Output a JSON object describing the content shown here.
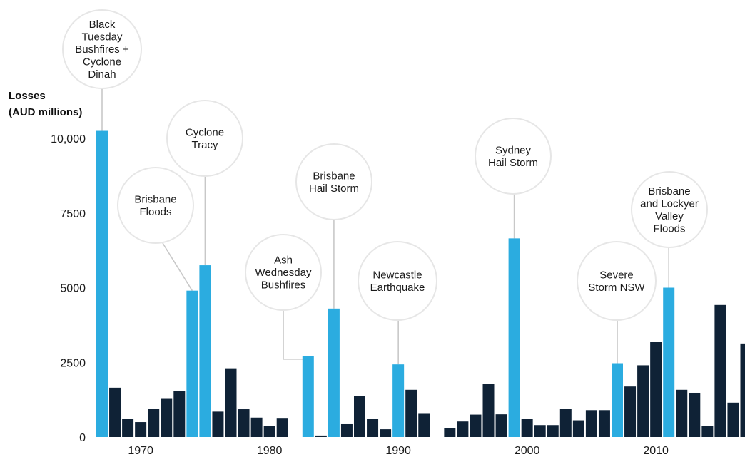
{
  "chart_data": {
    "type": "bar",
    "ylabel": [
      "Losses",
      "(AUD millions)"
    ],
    "ylim": [
      0,
      10000
    ],
    "yticks": [
      {
        "value": 0,
        "label": "0"
      },
      {
        "value": 2500,
        "label": "2500"
      },
      {
        "value": 5000,
        "label": "5000"
      },
      {
        "value": 7500,
        "label": "7500"
      },
      {
        "value": 10000,
        "label": "10,000"
      }
    ],
    "xticks": [
      {
        "year": 1970,
        "label": "1970"
      },
      {
        "year": 1980,
        "label": "1980"
      },
      {
        "year": 1990,
        "label": "1990"
      },
      {
        "year": 2000,
        "label": "2000"
      },
      {
        "year": 2010,
        "label": "2010"
      }
    ],
    "grid": false,
    "colors": {
      "highlight": "#2bace0",
      "regular": "#0f2236",
      "leader": "#c8c8c8",
      "circle_border": "#e6e6e6"
    },
    "bars": [
      {
        "year": 1967,
        "value": 10250,
        "highlight": true
      },
      {
        "year": 1968,
        "value": 1650,
        "highlight": false
      },
      {
        "year": 1969,
        "value": 600,
        "highlight": false
      },
      {
        "year": 1970,
        "value": 500,
        "highlight": false
      },
      {
        "year": 1971,
        "value": 950,
        "highlight": false
      },
      {
        "year": 1972,
        "value": 1300,
        "highlight": false
      },
      {
        "year": 1973,
        "value": 1550,
        "highlight": false
      },
      {
        "year": 1974,
        "value": 4900,
        "highlight": true
      },
      {
        "year": 1975,
        "value": 5750,
        "highlight": true
      },
      {
        "year": 1976,
        "value": 850,
        "highlight": false
      },
      {
        "year": 1977,
        "value": 2300,
        "highlight": false
      },
      {
        "year": 1978,
        "value": 930,
        "highlight": false
      },
      {
        "year": 1979,
        "value": 650,
        "highlight": false
      },
      {
        "year": 1980,
        "value": 370,
        "highlight": false
      },
      {
        "year": 1981,
        "value": 640,
        "highlight": false
      },
      {
        "year": 1983,
        "value": 2700,
        "highlight": true
      },
      {
        "year": 1984,
        "value": 50,
        "highlight": false
      },
      {
        "year": 1985,
        "value": 4300,
        "highlight": true
      },
      {
        "year": 1986,
        "value": 430,
        "highlight": false
      },
      {
        "year": 1987,
        "value": 1380,
        "highlight": false
      },
      {
        "year": 1988,
        "value": 600,
        "highlight": false
      },
      {
        "year": 1989,
        "value": 260,
        "highlight": false
      },
      {
        "year": 1990,
        "value": 2430,
        "highlight": true
      },
      {
        "year": 1991,
        "value": 1580,
        "highlight": false
      },
      {
        "year": 1992,
        "value": 800,
        "highlight": false
      },
      {
        "year": 1994,
        "value": 300,
        "highlight": false
      },
      {
        "year": 1995,
        "value": 520,
        "highlight": false
      },
      {
        "year": 1996,
        "value": 750,
        "highlight": false
      },
      {
        "year": 1997,
        "value": 1780,
        "highlight": false
      },
      {
        "year": 1998,
        "value": 760,
        "highlight": false
      },
      {
        "year": 1999,
        "value": 6650,
        "highlight": true
      },
      {
        "year": 2000,
        "value": 600,
        "highlight": false
      },
      {
        "year": 2001,
        "value": 400,
        "highlight": false
      },
      {
        "year": 2002,
        "value": 400,
        "highlight": false
      },
      {
        "year": 2003,
        "value": 950,
        "highlight": false
      },
      {
        "year": 2004,
        "value": 560,
        "highlight": false
      },
      {
        "year": 2005,
        "value": 900,
        "highlight": false
      },
      {
        "year": 2006,
        "value": 900,
        "highlight": false
      },
      {
        "year": 2007,
        "value": 2470,
        "highlight": true
      },
      {
        "year": 2008,
        "value": 1690,
        "highlight": false
      },
      {
        "year": 2009,
        "value": 2400,
        "highlight": false
      },
      {
        "year": 2010,
        "value": 3180,
        "highlight": false
      },
      {
        "year": 2011,
        "value": 5000,
        "highlight": true
      },
      {
        "year": 2012,
        "value": 1580,
        "highlight": false
      },
      {
        "year": 2013,
        "value": 1480,
        "highlight": false
      },
      {
        "year": 2014,
        "value": 380,
        "highlight": false
      },
      {
        "year": 2015,
        "value": 4420,
        "highlight": false
      },
      {
        "year": 2016,
        "value": 1150,
        "highlight": false
      },
      {
        "year": 2017,
        "value": 3130,
        "highlight": false
      }
    ],
    "annotations": [
      {
        "year": 1967,
        "lines": [
          "Black",
          "Tuesday",
          "Bushfires +",
          "Cyclone",
          "Dinah"
        ]
      },
      {
        "year": 1974,
        "lines": [
          "Brisbane",
          "Floods"
        ]
      },
      {
        "year": 1975,
        "lines": [
          "Cyclone",
          "Tracy"
        ]
      },
      {
        "year": 1983,
        "lines": [
          "Ash",
          "Wednesday",
          "Bushfires"
        ]
      },
      {
        "year": 1985,
        "lines": [
          "Brisbane",
          "Hail Storm"
        ]
      },
      {
        "year": 1990,
        "lines": [
          "Newcastle",
          "Earthquake"
        ]
      },
      {
        "year": 1999,
        "lines": [
          "Sydney",
          "Hail Storm"
        ]
      },
      {
        "year": 2007,
        "lines": [
          "Severe",
          "Storm NSW"
        ]
      },
      {
        "year": 2011,
        "lines": [
          "Brisbane",
          "and Lockyer",
          "Valley",
          "Floods"
        ]
      }
    ]
  }
}
